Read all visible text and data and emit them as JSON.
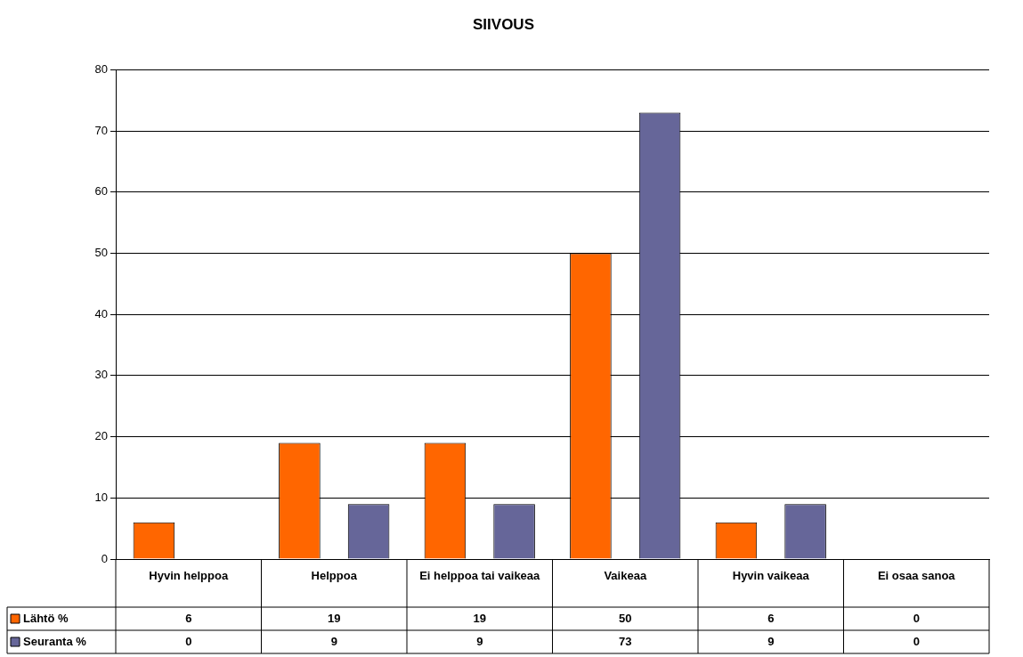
{
  "chart_data": {
    "type": "bar",
    "title": "SIIVOUS",
    "categories": [
      "Hyvin helppoa",
      "Helppoa",
      "Ei helppoa tai vaikeaa",
      "Vaikeaa",
      "Hyvin vaikeaa",
      "Ei osaa sanoa"
    ],
    "series": [
      {
        "name": "Lähtö %",
        "color": "#ff6600",
        "values": [
          6,
          19,
          19,
          50,
          6,
          0
        ]
      },
      {
        "name": "Seuranta %",
        "color": "#666699",
        "values": [
          0,
          9,
          9,
          73,
          9,
          0
        ]
      }
    ],
    "ylim": [
      0,
      80
    ],
    "yticks": [
      0,
      10,
      20,
      30,
      40,
      50,
      60,
      70,
      80
    ],
    "grid": "y",
    "legend": "bottom",
    "data_labels": true
  }
}
